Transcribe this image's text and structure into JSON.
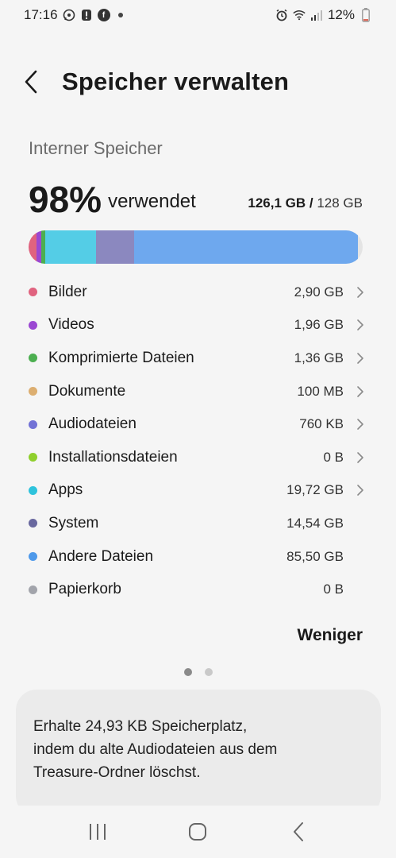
{
  "status_bar": {
    "time": "17:16",
    "left_icons": [
      "whatsapp-icon",
      "alert-icon",
      "facebook-icon",
      "notification-dot"
    ],
    "right_icons": [
      "alarm-icon",
      "wifi-icon",
      "signal-icon"
    ],
    "battery_percent": "12%"
  },
  "header": {
    "title": "Speicher verwalten"
  },
  "storage": {
    "section_label": "Interner Speicher",
    "percent": "98%",
    "used_word": "verwendet",
    "used": "126,1 GB",
    "separator": "/",
    "total": "128 GB",
    "bar_segments": [
      {
        "name": "Bilder",
        "fraction": 0.023,
        "color": "#e0637f"
      },
      {
        "name": "Videos",
        "fraction": 0.015,
        "color": "#9b48d2"
      },
      {
        "name": "Komprimierte Dateien",
        "fraction": 0.011,
        "color": "#4caf50"
      },
      {
        "name": "Apps",
        "fraction": 0.154,
        "color": "#54cde6"
      },
      {
        "name": "System",
        "fraction": 0.114,
        "color": "#8b88bf"
      },
      {
        "name": "Andere Dateien",
        "fraction": 0.668,
        "color": "#6ea8ee"
      }
    ]
  },
  "categories": [
    {
      "label": "Bilder",
      "size": "2,90 GB",
      "color": "#e0637f",
      "chevron": true
    },
    {
      "label": "Videos",
      "size": "1,96 GB",
      "color": "#9b48d2",
      "chevron": true
    },
    {
      "label": "Komprimierte Dateien",
      "size": "1,36 GB",
      "color": "#4caf50",
      "chevron": true
    },
    {
      "label": "Dokumente",
      "size": "100 MB",
      "color": "#dcae70",
      "chevron": true
    },
    {
      "label": "Audiodateien",
      "size": "760 KB",
      "color": "#7272d6",
      "chevron": true
    },
    {
      "label": "Installationsdateien",
      "size": "0 B",
      "color": "#8fcf2c",
      "chevron": true
    },
    {
      "label": "Apps",
      "size": "19,72 GB",
      "color": "#2ec3dc",
      "chevron": true
    },
    {
      "label": "System",
      "size": "14,54 GB",
      "color": "#69689f",
      "chevron": false
    },
    {
      "label": "Andere Dateien",
      "size": "85,50 GB",
      "color": "#4e99ea",
      "chevron": false
    },
    {
      "label": "Papierkorb",
      "size": "0 B",
      "color": "#a2a4ab",
      "chevron": false
    }
  ],
  "less_label": "Weniger",
  "pager": {
    "count": 2,
    "active": 0
  },
  "tip": {
    "text": "Erhalte 24,93 KB Speicherplatz,\nindem du alte Audiodateien aus dem\nTreasure-Ordner löschst."
  },
  "nav": {
    "buttons": [
      "recent-apps-icon",
      "home-icon",
      "back-icon"
    ]
  }
}
